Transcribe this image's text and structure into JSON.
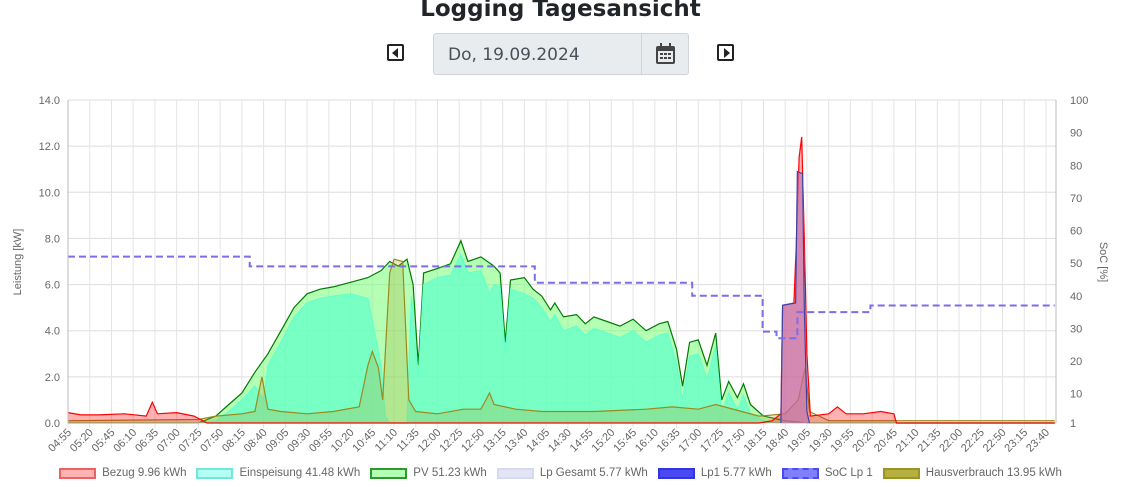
{
  "header": {
    "title": "Logging Tagesansicht",
    "date": "Do, 19.09.2024",
    "prev_icon": "caret-left-icon",
    "next_icon": "caret-right-icon",
    "calendar_icon": "calendar-icon"
  },
  "chart_data": {
    "type": "area",
    "ylabel": "Leistung [kW]",
    "y2label": "SoC [%]",
    "ylim": [
      0,
      14
    ],
    "y2lim": [
      1,
      100
    ],
    "yticks": [
      "0.0",
      "2.0",
      "4.0",
      "6.0",
      "8.0",
      "10.0",
      "12.0",
      "14.0"
    ],
    "y2ticks": [
      "1",
      "10",
      "20",
      "30",
      "40",
      "50",
      "60",
      "70",
      "80",
      "90",
      "100"
    ],
    "xticks": [
      "04:55",
      "05:20",
      "05:45",
      "06:10",
      "06:35",
      "07:00",
      "07:25",
      "07:50",
      "08:15",
      "08:40",
      "09:05",
      "09:30",
      "09:55",
      "10:20",
      "10:45",
      "11:10",
      "11:35",
      "12:00",
      "12:25",
      "12:50",
      "13:15",
      "13:40",
      "14:05",
      "14:30",
      "14:55",
      "15:20",
      "15:45",
      "16:10",
      "16:35",
      "17:00",
      "17:25",
      "17:50",
      "18:15",
      "18:40",
      "19:05",
      "19:30",
      "19:55",
      "20:20",
      "20:45",
      "21:10",
      "21:35",
      "22:00",
      "22:25",
      "22:50",
      "23:15",
      "23:40"
    ],
    "xrange": [
      "04:55",
      "23:50"
    ],
    "grid": true,
    "legend_position": "bottom",
    "series": [
      {
        "name": "Bezug 9.96 kWh",
        "axis": "left",
        "color": "#ff0000",
        "fill": "rgba(255,0,0,0.3)",
        "points": [
          [
            "04:55",
            0.45
          ],
          [
            "05:10",
            0.35
          ],
          [
            "05:30",
            0.35
          ],
          [
            "06:00",
            0.4
          ],
          [
            "06:25",
            0.3
          ],
          [
            "06:32",
            0.9
          ],
          [
            "06:38",
            0.4
          ],
          [
            "07:00",
            0.45
          ],
          [
            "07:20",
            0.3
          ],
          [
            "07:35",
            0
          ],
          [
            "18:10",
            0
          ],
          [
            "18:25",
            0.1
          ],
          [
            "18:35",
            0.4
          ],
          [
            "18:37",
            5.1
          ],
          [
            "18:50",
            5.2
          ],
          [
            "18:53",
            8.0
          ],
          [
            "18:56",
            11.5
          ],
          [
            "18:59",
            12.4
          ],
          [
            "19:02",
            8.0
          ],
          [
            "19:05",
            3.0
          ],
          [
            "19:09",
            0.3
          ],
          [
            "19:30",
            0.4
          ],
          [
            "19:40",
            0.7
          ],
          [
            "19:50",
            0.4
          ],
          [
            "20:10",
            0.4
          ],
          [
            "20:30",
            0.5
          ],
          [
            "20:45",
            0.4
          ],
          [
            "20:48",
            0
          ],
          [
            "23:50",
            0
          ]
        ]
      },
      {
        "name": "Einspeisung 41.48 kWh",
        "axis": "left",
        "color": "#66ffcc",
        "fill": "rgba(100,255,200,0.75)",
        "points": [
          [
            "04:55",
            0
          ],
          [
            "07:25",
            0
          ],
          [
            "07:45",
            0.1
          ],
          [
            "08:00",
            0.5
          ],
          [
            "08:15",
            1.0
          ],
          [
            "08:30",
            1.6
          ],
          [
            "08:40",
            1.0
          ],
          [
            "08:45",
            2.5
          ],
          [
            "09:00",
            3.5
          ],
          [
            "09:15",
            4.6
          ],
          [
            "09:30",
            5.2
          ],
          [
            "09:45",
            5.4
          ],
          [
            "10:00",
            5.5
          ],
          [
            "10:20",
            5.6
          ],
          [
            "10:40",
            5.4
          ],
          [
            "10:50",
            3.5
          ],
          [
            "10:55",
            2.5
          ],
          [
            "11:00",
            0.3
          ],
          [
            "11:05",
            0
          ],
          [
            "11:25",
            0
          ],
          [
            "11:30",
            5.5
          ],
          [
            "11:38",
            2.0
          ],
          [
            "11:44",
            6.0
          ],
          [
            "12:00",
            6.3
          ],
          [
            "12:15",
            6.4
          ],
          [
            "12:27",
            7.3
          ],
          [
            "12:35",
            6.5
          ],
          [
            "12:50",
            6.6
          ],
          [
            "13:00",
            5.6
          ],
          [
            "13:05",
            6.0
          ],
          [
            "13:12",
            5.9
          ],
          [
            "13:18",
            3.0
          ],
          [
            "13:24",
            5.8
          ],
          [
            "13:40",
            5.6
          ],
          [
            "13:50",
            5.4
          ],
          [
            "14:00",
            5.0
          ],
          [
            "14:10",
            4.4
          ],
          [
            "14:15",
            4.7
          ],
          [
            "14:25",
            4.0
          ],
          [
            "14:40",
            4.2
          ],
          [
            "14:50",
            3.8
          ],
          [
            "15:00",
            4.1
          ],
          [
            "15:15",
            3.9
          ],
          [
            "15:30",
            3.7
          ],
          [
            "15:45",
            4.0
          ],
          [
            "16:00",
            3.5
          ],
          [
            "16:15",
            3.8
          ],
          [
            "16:25",
            3.9
          ],
          [
            "16:35",
            2.6
          ],
          [
            "16:42",
            1.0
          ],
          [
            "16:50",
            2.9
          ],
          [
            "17:00",
            3.0
          ],
          [
            "17:10",
            1.9
          ],
          [
            "17:20",
            3.3
          ],
          [
            "17:27",
            0.5
          ],
          [
            "17:35",
            1.3
          ],
          [
            "17:45",
            0.6
          ],
          [
            "17:52",
            1.2
          ],
          [
            "18:00",
            0.4
          ],
          [
            "18:15",
            0.1
          ],
          [
            "18:30",
            0
          ],
          [
            "23:50",
            0
          ]
        ]
      },
      {
        "name": "PV 51.23 kWh",
        "axis": "left",
        "color": "#007a00",
        "fill": "rgba(120,255,120,0.55)",
        "points": [
          [
            "04:55",
            0
          ],
          [
            "07:25",
            0
          ],
          [
            "07:45",
            0.3
          ],
          [
            "08:00",
            0.8
          ],
          [
            "08:15",
            1.3
          ],
          [
            "08:30",
            2.2
          ],
          [
            "08:45",
            3.0
          ],
          [
            "09:00",
            4.0
          ],
          [
            "09:15",
            5.0
          ],
          [
            "09:30",
            5.6
          ],
          [
            "09:45",
            5.8
          ],
          [
            "10:00",
            5.9
          ],
          [
            "10:20",
            6.1
          ],
          [
            "10:40",
            6.3
          ],
          [
            "10:55",
            6.6
          ],
          [
            "11:05",
            7.0
          ],
          [
            "11:15",
            6.8
          ],
          [
            "11:25",
            7.1
          ],
          [
            "11:32",
            6.0
          ],
          [
            "11:38",
            2.5
          ],
          [
            "11:44",
            6.5
          ],
          [
            "12:00",
            6.7
          ],
          [
            "12:15",
            6.9
          ],
          [
            "12:27",
            7.9
          ],
          [
            "12:35",
            7.0
          ],
          [
            "12:50",
            7.2
          ],
          [
            "13:05",
            6.8
          ],
          [
            "13:12",
            6.5
          ],
          [
            "13:18",
            3.5
          ],
          [
            "13:24",
            6.2
          ],
          [
            "13:40",
            6.3
          ],
          [
            "13:50",
            5.8
          ],
          [
            "14:00",
            5.5
          ],
          [
            "14:10",
            4.9
          ],
          [
            "14:15",
            5.2
          ],
          [
            "14:25",
            4.6
          ],
          [
            "14:40",
            4.7
          ],
          [
            "14:50",
            4.3
          ],
          [
            "15:00",
            4.6
          ],
          [
            "15:15",
            4.4
          ],
          [
            "15:30",
            4.2
          ],
          [
            "15:45",
            4.5
          ],
          [
            "16:00",
            4.0
          ],
          [
            "16:15",
            4.3
          ],
          [
            "16:25",
            4.4
          ],
          [
            "16:35",
            3.2
          ],
          [
            "16:42",
            1.6
          ],
          [
            "16:50",
            3.5
          ],
          [
            "17:00",
            3.6
          ],
          [
            "17:10",
            2.5
          ],
          [
            "17:20",
            3.9
          ],
          [
            "17:27",
            1.0
          ],
          [
            "17:35",
            1.8
          ],
          [
            "17:45",
            1.1
          ],
          [
            "17:52",
            1.7
          ],
          [
            "18:00",
            0.8
          ],
          [
            "18:15",
            0.3
          ],
          [
            "18:40",
            0.1
          ],
          [
            "19:05",
            0
          ],
          [
            "23:50",
            0
          ]
        ]
      },
      {
        "name": "Lp Gesamt 5.77 kWh",
        "axis": "left",
        "color": "#c8c8f0",
        "fill": "rgba(200,200,240,0.5)",
        "points": [
          [
            "18:35",
            0
          ],
          [
            "18:37",
            5.1
          ],
          [
            "18:52",
            5.2
          ],
          [
            "18:54",
            10.9
          ],
          [
            "19:00",
            10.8
          ],
          [
            "19:02",
            5.0
          ],
          [
            "19:05",
            0.5
          ],
          [
            "19:08",
            0
          ]
        ]
      },
      {
        "name": "Lp1 5.77 kWh",
        "axis": "left",
        "color": "#4040a0",
        "fill": "rgba(180,40,120,0.35)",
        "points": [
          [
            "18:35",
            0
          ],
          [
            "18:37",
            5.1
          ],
          [
            "18:52",
            5.2
          ],
          [
            "18:54",
            10.9
          ],
          [
            "19:00",
            10.8
          ],
          [
            "19:02",
            5.0
          ],
          [
            "19:05",
            0.5
          ],
          [
            "19:08",
            0
          ]
        ]
      },
      {
        "name": "SoC Lp 1",
        "axis": "right",
        "color": "#7b6ee6",
        "dashed": true,
        "step": true,
        "points": [
          [
            "04:55",
            52
          ],
          [
            "08:24",
            49
          ],
          [
            "13:52",
            44
          ],
          [
            "16:53",
            40
          ],
          [
            "18:14",
            29
          ],
          [
            "18:30",
            27
          ],
          [
            "18:54",
            35
          ],
          [
            "20:18",
            37
          ],
          [
            "23:50",
            37
          ]
        ]
      },
      {
        "name": "Hausverbrauch 13.95 kWh",
        "axis": "left",
        "color": "#9a8a20",
        "fill": "rgba(170,160,40,0.25)",
        "points": [
          [
            "04:55",
            0.1
          ],
          [
            "07:25",
            0.15
          ],
          [
            "07:45",
            0.3
          ],
          [
            "08:15",
            0.4
          ],
          [
            "08:30",
            0.5
          ],
          [
            "08:38",
            2.0
          ],
          [
            "08:45",
            0.6
          ],
          [
            "09:00",
            0.5
          ],
          [
            "09:30",
            0.4
          ],
          [
            "10:00",
            0.5
          ],
          [
            "10:30",
            0.7
          ],
          [
            "10:40",
            2.5
          ],
          [
            "10:45",
            3.1
          ],
          [
            "10:52",
            2.4
          ],
          [
            "10:57",
            1.0
          ],
          [
            "11:05",
            6.5
          ],
          [
            "11:10",
            7.1
          ],
          [
            "11:20",
            7.0
          ],
          [
            "11:27",
            1.0
          ],
          [
            "11:35",
            0.5
          ],
          [
            "12:00",
            0.4
          ],
          [
            "12:30",
            0.6
          ],
          [
            "12:50",
            0.6
          ],
          [
            "13:00",
            1.3
          ],
          [
            "13:05",
            0.8
          ],
          [
            "13:30",
            0.6
          ],
          [
            "14:00",
            0.5
          ],
          [
            "15:00",
            0.5
          ],
          [
            "16:00",
            0.6
          ],
          [
            "16:30",
            0.7
          ],
          [
            "17:00",
            0.6
          ],
          [
            "17:20",
            0.8
          ],
          [
            "17:50",
            0.5
          ],
          [
            "18:10",
            0.3
          ],
          [
            "18:40",
            0.4
          ],
          [
            "18:55",
            1.0
          ],
          [
            "19:03",
            2.4
          ],
          [
            "19:08",
            0.5
          ],
          [
            "19:30",
            0.1
          ],
          [
            "23:50",
            0.1
          ]
        ]
      }
    ],
    "legend": [
      {
        "label": "Bezug 9.96 kWh",
        "fill": "#ffb3b3",
        "border": "#f06060",
        "dashed": false
      },
      {
        "label": "Einspeisung 41.48 kWh",
        "fill": "#b3fff5",
        "border": "#70e8d8",
        "dashed": false
      },
      {
        "label": "PV 51.23 kWh",
        "fill": "#b3ffb3",
        "border": "#2e9a2e",
        "dashed": false
      },
      {
        "label": "Lp Gesamt 5.77 kWh",
        "fill": "#e4e4f7",
        "border": "#d8d8f0",
        "dashed": false
      },
      {
        "label": "Lp1 5.77 kWh",
        "fill": "#4a4af5",
        "border": "#3535e0",
        "dashed": false
      },
      {
        "label": "SoC Lp 1",
        "fill": "#8080ff",
        "border": "#4a4af5",
        "dashed": true
      },
      {
        "label": "Hausverbrauch 13.95 kWh",
        "fill": "#b5b040",
        "border": "#9a9420",
        "dashed": false
      }
    ]
  }
}
